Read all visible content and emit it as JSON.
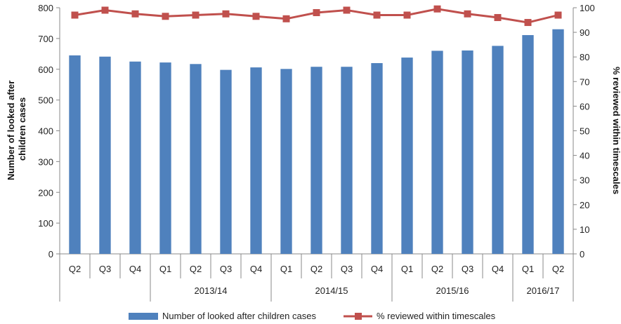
{
  "chart_data": {
    "type": "bar",
    "categories": [
      "Q2",
      "Q3",
      "Q4",
      "Q1",
      "Q2",
      "Q3",
      "Q4",
      "Q1",
      "Q2",
      "Q3",
      "Q4",
      "Q1",
      "Q2",
      "Q3",
      "Q4",
      "Q1",
      "Q2"
    ],
    "groups": [
      {
        "label": "",
        "span": 3
      },
      {
        "label": "2013/14",
        "span": 4
      },
      {
        "label": "2014/15",
        "span": 4
      },
      {
        "label": "2015/16",
        "span": 4
      },
      {
        "label": "2016/17",
        "span": 2
      }
    ],
    "series": [
      {
        "name": "Number of looked after children cases",
        "kind": "bar",
        "axis": "left",
        "color": "#4f81bd",
        "values": [
          645,
          641,
          625,
          622,
          617,
          598,
          606,
          601,
          608,
          608,
          620,
          638,
          660,
          661,
          676,
          711,
          730
        ]
      },
      {
        "name": "% reviewed within timescales",
        "kind": "line",
        "axis": "right",
        "color": "#c0504d",
        "values": [
          97,
          99,
          97.5,
          96.5,
          97,
          97.5,
          96.5,
          95.5,
          98,
          99,
          97,
          97,
          99.5,
          97.5,
          96,
          94,
          97
        ]
      }
    ],
    "ylabel": "Number of looked after children cases",
    "ylabel_lines": [
      "Number of looked after",
      "children cases"
    ],
    "y2label": "% reviewed within timescales",
    "ylim": [
      0,
      800
    ],
    "y2lim": [
      0,
      100
    ],
    "yticks": [
      0,
      100,
      200,
      300,
      400,
      500,
      600,
      700,
      800
    ],
    "y2ticks": [
      0,
      10,
      20,
      30,
      40,
      50,
      60,
      70,
      80,
      90,
      100
    ],
    "legend_position": "bottom",
    "grid": false
  }
}
